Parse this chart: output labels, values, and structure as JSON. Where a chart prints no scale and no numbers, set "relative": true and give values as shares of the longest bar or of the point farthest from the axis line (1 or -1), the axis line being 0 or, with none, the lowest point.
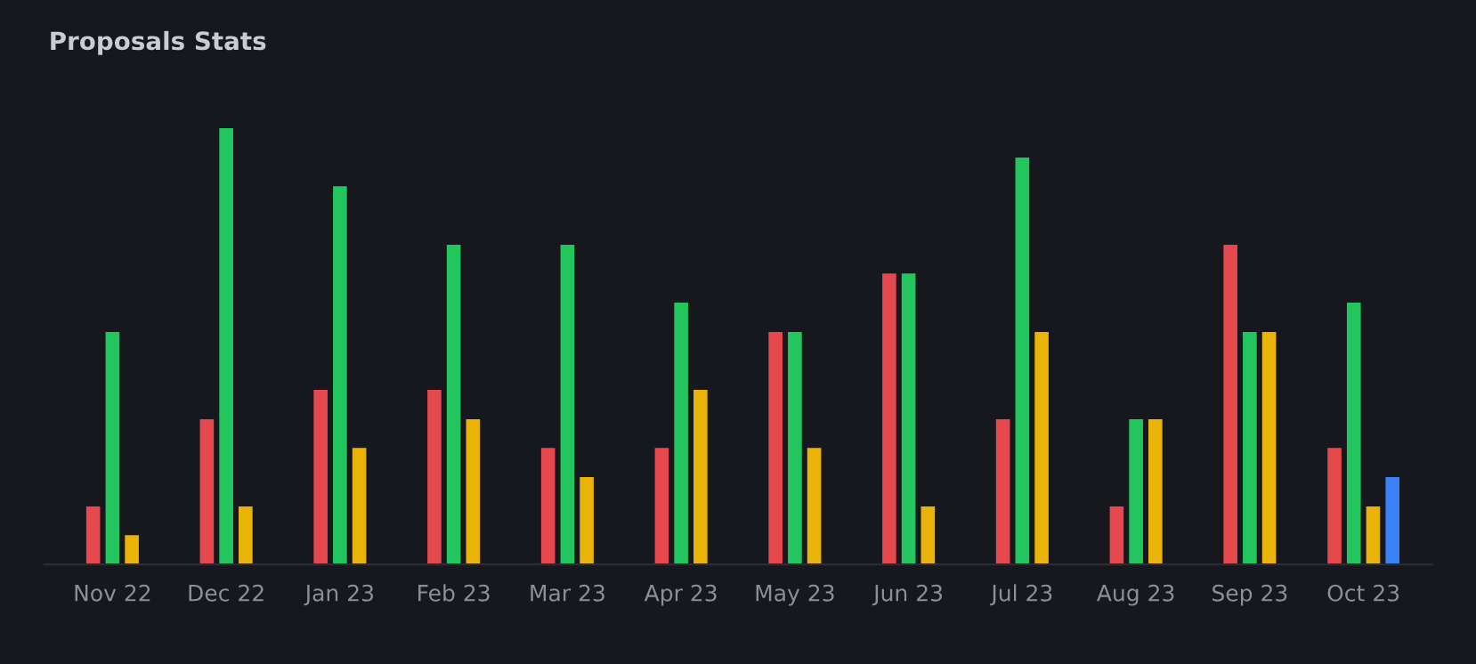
{
  "chart_data": {
    "type": "bar",
    "title": "Proposals Stats",
    "relative": true,
    "categories": [
      "Nov 22",
      "Dec 22",
      "Jan 23",
      "Feb 23",
      "Mar 23",
      "Apr 23",
      "May 23",
      "Jun 23",
      "Jul 23",
      "Aug 23",
      "Sep 23",
      "Oct 23"
    ],
    "series": [
      {
        "color": "#e5484d",
        "values": [
          0.133,
          0.333,
          0.4,
          0.4,
          0.267,
          0.267,
          0.533,
          0.667,
          0.333,
          0.133,
          0.733,
          0.267
        ]
      },
      {
        "color": "#22c55e",
        "values": [
          0.533,
          1,
          0.867,
          0.733,
          0.733,
          0.6,
          0.533,
          0.667,
          0.933,
          0.333,
          0.533,
          0.6
        ]
      },
      {
        "color": "#eab308",
        "values": [
          0.067,
          0.133,
          0.267,
          0.333,
          0.2,
          0.4,
          0.267,
          0.133,
          0.533,
          0.333,
          0.533,
          0.133
        ]
      },
      {
        "color": "#3b82f6",
        "values": [
          null,
          null,
          null,
          null,
          null,
          null,
          null,
          null,
          null,
          null,
          null,
          0.2
        ]
      }
    ],
    "grid": false,
    "legend": false
  }
}
